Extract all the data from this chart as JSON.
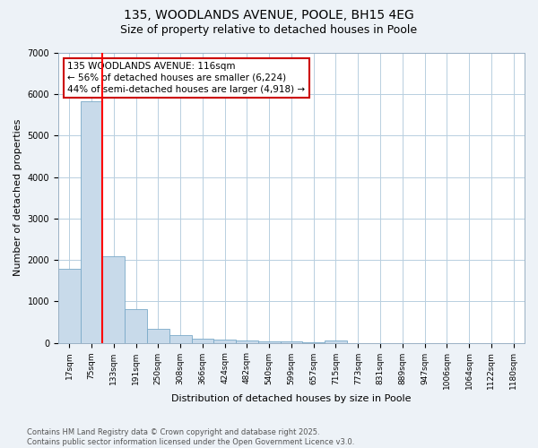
{
  "title1": "135, WOODLANDS AVENUE, POOLE, BH15 4EG",
  "title2": "Size of property relative to detached houses in Poole",
  "xlabel": "Distribution of detached houses by size in Poole",
  "ylabel": "Number of detached properties",
  "categories": [
    "17sqm",
    "75sqm",
    "133sqm",
    "191sqm",
    "250sqm",
    "308sqm",
    "366sqm",
    "424sqm",
    "482sqm",
    "540sqm",
    "599sqm",
    "657sqm",
    "715sqm",
    "773sqm",
    "831sqm",
    "889sqm",
    "947sqm",
    "1006sqm",
    "1064sqm",
    "1122sqm",
    "1180sqm"
  ],
  "values": [
    1780,
    5830,
    2080,
    820,
    330,
    185,
    105,
    75,
    55,
    35,
    25,
    15,
    55,
    2,
    2,
    2,
    2,
    2,
    2,
    2,
    2
  ],
  "bar_color": "#c8daea",
  "bar_edge_color": "#7aaac8",
  "annotation_text": "135 WOODLANDS AVENUE: 116sqm\n← 56% of detached houses are smaller (6,224)\n44% of semi-detached houses are larger (4,918) →",
  "annotation_box_color": "#ffffff",
  "annotation_edge_color": "#cc0000",
  "footer_text": "Contains HM Land Registry data © Crown copyright and database right 2025.\nContains public sector information licensed under the Open Government Licence v3.0.",
  "ylim": [
    0,
    7000
  ],
  "background_color": "#edf2f7",
  "plot_bg_color": "#ffffff",
  "grid_color": "#b8cfe0",
  "title_fontsize": 10,
  "subtitle_fontsize": 9,
  "ylabel_fontsize": 8,
  "xlabel_fontsize": 8,
  "tick_fontsize": 6.5,
  "footer_fontsize": 6,
  "annot_fontsize": 7.5
}
